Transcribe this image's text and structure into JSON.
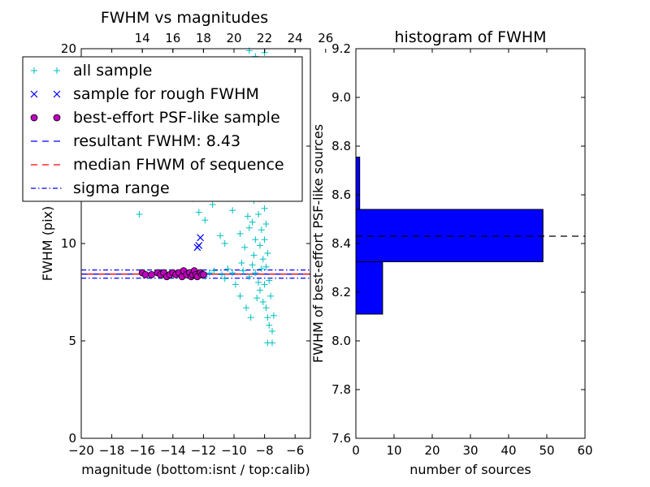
{
  "chart_data": [
    {
      "type": "scatter",
      "title": "FWHM vs magnitudes",
      "xlabel": "magnitude (bottom:isnt / top:calib)",
      "ylabel": "FWHM (pix)",
      "xlim": [
        -20,
        -5
      ],
      "ylim": [
        0,
        20
      ],
      "x_ticks": [
        "−20",
        "−18",
        "−16",
        "−14",
        "−12",
        "−10",
        "−8",
        "−6"
      ],
      "y_ticks": [
        "0",
        "5",
        "10",
        "15",
        "20"
      ],
      "top_axis": {
        "label": "",
        "ticks": [
          "14",
          "16",
          "18",
          "20",
          "22",
          "24",
          "26"
        ],
        "offset": 30
      },
      "grid": false,
      "legend": {
        "position": "upper-left",
        "entries": [
          {
            "label": "all sample",
            "marker": "+",
            "color": "#00bfbf"
          },
          {
            "label": "sample for rough FWHM",
            "marker": "x",
            "color": "#0000ff"
          },
          {
            "label": "best-effort PSF-like sample",
            "marker": "o",
            "color": "#bf00bf"
          },
          {
            "label": "resultant FWHM: 8.43",
            "line": "dashed",
            "color": "#0000ff"
          },
          {
            "label": "median FHWM of sequence",
            "line": "dashed",
            "color": "#ff0000"
          },
          {
            "label": "sigma range",
            "line": "dashdot",
            "color": "#0000ff"
          }
        ]
      },
      "hlines": [
        {
          "y": 8.43,
          "style": "dashed",
          "color": "#0000ff"
        },
        {
          "y": 8.43,
          "style": "dashed",
          "color": "#ff0000"
        },
        {
          "y": 8.64,
          "style": "dashdot",
          "color": "#0000ff"
        },
        {
          "y": 8.22,
          "style": "dashdot",
          "color": "#0000ff"
        }
      ],
      "series": [
        {
          "name": "all sample",
          "marker": "+",
          "color": "#00bfbf",
          "points": [
            [
              -16.2,
              11.5
            ],
            [
              -12.7,
              12.3
            ],
            [
              -12.3,
              11.6
            ],
            [
              -11.9,
              11.2
            ],
            [
              -11.4,
              12.0
            ],
            [
              -11.2,
              12.6
            ],
            [
              -11.4,
              19.2
            ],
            [
              -10.2,
              19.3
            ],
            [
              -9.0,
              19.9
            ],
            [
              -8.6,
              19.6
            ],
            [
              -8.0,
              19.8
            ],
            [
              -10.9,
              10.4
            ],
            [
              -10.6,
              10.0
            ],
            [
              -10.1,
              11.7
            ],
            [
              -9.7,
              13.0
            ],
            [
              -9.8,
              14.0
            ],
            [
              -10.1,
              13.6
            ],
            [
              -9.4,
              14.4
            ],
            [
              -9.2,
              12.6
            ],
            [
              -9.1,
              11.4
            ],
            [
              -9.6,
              10.5
            ],
            [
              -9.3,
              9.8
            ],
            [
              -9.0,
              10.8
            ],
            [
              -8.8,
              14.5
            ],
            [
              -8.9,
              13.4
            ],
            [
              -8.7,
              12.2
            ],
            [
              -8.8,
              11.1
            ],
            [
              -8.6,
              10.2
            ],
            [
              -8.7,
              9.4
            ],
            [
              -8.5,
              15.0
            ],
            [
              -8.4,
              14.2
            ],
            [
              -8.5,
              13.1
            ],
            [
              -8.3,
              12.3
            ],
            [
              -8.4,
              11.5
            ],
            [
              -8.2,
              10.7
            ],
            [
              -8.3,
              9.9
            ],
            [
              -8.1,
              9.2
            ],
            [
              -8.2,
              8.7
            ],
            [
              -8.0,
              14.7
            ],
            [
              -8.1,
              13.5
            ],
            [
              -7.9,
              12.7
            ],
            [
              -8.0,
              11.8
            ],
            [
              -7.9,
              11.0
            ],
            [
              -8.0,
              10.2
            ],
            [
              -7.8,
              9.5
            ],
            [
              -7.9,
              8.8
            ],
            [
              -7.7,
              8.1
            ],
            [
              -8.6,
              8.5
            ],
            [
              -8.4,
              8.0
            ],
            [
              -8.3,
              7.6
            ],
            [
              -8.1,
              7.0
            ],
            [
              -7.9,
              6.7
            ],
            [
              -7.8,
              6.2
            ],
            [
              -7.7,
              5.8
            ],
            [
              -7.5,
              5.5
            ],
            [
              -7.4,
              6.3
            ],
            [
              -7.6,
              7.3
            ],
            [
              -8.5,
              7.2
            ],
            [
              -8.0,
              7.9
            ],
            [
              -7.8,
              4.9
            ],
            [
              -7.5,
              4.9
            ],
            [
              -9.4,
              8.6
            ],
            [
              -10.1,
              8.5
            ],
            [
              -10.8,
              8.4
            ],
            [
              -11.3,
              8.6
            ],
            [
              -11.9,
              8.3
            ],
            [
              -12.4,
              8.5
            ],
            [
              -9.9,
              7.9
            ],
            [
              -9.6,
              7.3
            ],
            [
              -9.2,
              6.7
            ],
            [
              -8.9,
              6.2
            ],
            [
              -10.4,
              8.7
            ],
            [
              -10.6,
              8.2
            ],
            [
              -11.6,
              8.5
            ],
            [
              -9.0,
              8.3
            ],
            [
              -8.8,
              8.9
            ],
            [
              -9.5,
              9.0
            ],
            [
              -8.2,
              15.6
            ],
            [
              -8.0,
              16.1
            ],
            [
              -8.3,
              16.6
            ],
            [
              -8.7,
              16.2
            ],
            [
              -9.2,
              15.7
            ],
            [
              -9.6,
              15.2
            ],
            [
              -10.0,
              14.8
            ],
            [
              -8.1,
              17.1
            ],
            [
              -8.4,
              17.6
            ],
            [
              -8.9,
              17.3
            ],
            [
              -9.3,
              18.2
            ],
            [
              -9.8,
              16.7
            ],
            [
              -10.3,
              15.9
            ],
            [
              -10.7,
              16.4
            ],
            [
              -11.1,
              14.0
            ],
            [
              -10.9,
              13.0
            ],
            [
              -10.5,
              12.4
            ],
            [
              -10.2,
              18.5
            ]
          ]
        },
        {
          "name": "sample for rough FWHM",
          "marker": "x",
          "color": "#0000ff",
          "points": [
            [
              -12.2,
              10.3
            ],
            [
              -12.4,
              9.8
            ],
            [
              -12.3,
              9.9
            ]
          ]
        },
        {
          "name": "best-effort PSF-like sample",
          "marker": "o",
          "color": "#bf00bf",
          "points": [
            [
              -16.0,
              8.5
            ],
            [
              -15.8,
              8.4
            ],
            [
              -15.4,
              8.4
            ],
            [
              -15.0,
              8.5
            ],
            [
              -14.8,
              8.4
            ],
            [
              -14.6,
              8.5
            ],
            [
              -14.4,
              8.3
            ],
            [
              -14.2,
              8.4
            ],
            [
              -14.0,
              8.5
            ],
            [
              -13.8,
              8.4
            ],
            [
              -13.6,
              8.5
            ],
            [
              -13.4,
              8.3
            ],
            [
              -13.3,
              8.6
            ],
            [
              -13.1,
              8.4
            ],
            [
              -12.9,
              8.5
            ],
            [
              -12.8,
              8.3
            ],
            [
              -12.7,
              8.4
            ],
            [
              -12.6,
              8.6
            ],
            [
              -12.5,
              8.4
            ],
            [
              -12.4,
              8.3
            ],
            [
              -12.2,
              8.5
            ],
            [
              -12.1,
              8.4
            ],
            [
              -12.0,
              8.4
            ]
          ]
        }
      ]
    },
    {
      "type": "bar",
      "orientation": "horizontal",
      "title": "histogram of FWHM",
      "xlabel": "number of sources",
      "ylabel": "FWHM of best-effort PSF-like sources",
      "xlim": [
        0,
        60
      ],
      "ylim": [
        7.6,
        9.2
      ],
      "x_ticks": [
        "0",
        "10",
        "20",
        "30",
        "40",
        "50",
        "60"
      ],
      "y_ticks": [
        "7.6",
        "7.8",
        "8.0",
        "8.2",
        "8.4",
        "8.6",
        "8.8",
        "9.0",
        "9.2"
      ],
      "bar_color": "#0000ff",
      "bins": [
        {
          "y0": 8.11,
          "y1": 8.325,
          "count": 7
        },
        {
          "y0": 8.325,
          "y1": 8.54,
          "count": 49
        },
        {
          "y0": 8.54,
          "y1": 8.755,
          "count": 1
        }
      ],
      "hline": {
        "y": 8.43,
        "style": "dashed",
        "color": "#000000"
      }
    }
  ]
}
